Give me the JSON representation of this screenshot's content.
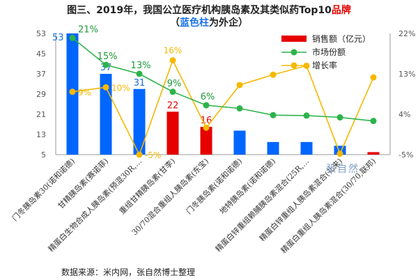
{
  "title": {
    "line1_pre": "图三、2019年，我国公立医疗机构胰岛素及其类似药Top10",
    "line1_red": "品牌",
    "line2_open": "（",
    "line2_blue": "蓝色柱",
    "line2_rest": "为外企）"
  },
  "source": "数据来源：米内网，张自然博士整理",
  "watermark": "张自然",
  "colors": {
    "foreign_bar": "#0066ff",
    "domestic_bar": "#e60000",
    "share_line": "#2db34a",
    "growth_line": "#f5b800"
  },
  "chart_data": {
    "type": "bar",
    "categories": [
      "门冬胰岛素30(诺和诺德)",
      "甘精胰岛素(赛诺菲)",
      "精蛋白生物合成人胰岛素(预混30R,…",
      "重组甘精胰岛素(甘李)",
      "30/70混合重组人胰岛素(东宝)",
      "门冬胰岛素(诺和诺德)",
      "地特胰岛素(诺和诺德)",
      "精蛋白锌重组赖脯胰岛素混合(25R,…",
      "精蛋白锌重组人胰岛素混合(礼来)",
      "精蛋白重组人胰岛素混合(30/70,联邦)"
    ],
    "foreign": [
      true,
      true,
      true,
      false,
      false,
      true,
      true,
      true,
      true,
      false
    ],
    "series": [
      {
        "name": "销售额（亿元）",
        "axis": "left",
        "values": [
          53,
          37,
          31,
          22,
          16,
          14.5,
          10,
          10,
          8.5,
          6
        ]
      },
      {
        "name": "市场份额",
        "axis": "right",
        "values": [
          21,
          15,
          13,
          9,
          6,
          5.3,
          3.8,
          3.7,
          3.3,
          2.5
        ]
      },
      {
        "name": "增长率",
        "axis": "right",
        "values": [
          9,
          10,
          -5,
          16,
          1,
          10.5,
          12.8,
          14.8,
          -4.8,
          12.2
        ]
      }
    ],
    "bar_labels": [
      "53",
      "37",
      "31",
      "22",
      "16",
      "",
      "",
      "",
      "",
      ""
    ],
    "share_labels": [
      "21%",
      "15%",
      "13%",
      "9%",
      "6%",
      "",
      "",
      "",
      "",
      ""
    ],
    "growth_labels": [
      "9%",
      "10%",
      "-5%",
      "16%",
      "",
      "",
      "",
      "",
      "",
      ""
    ],
    "left_axis": {
      "min": 5,
      "max": 53,
      "ticks": [
        "5",
        "13",
        "21",
        "29",
        "37",
        "45",
        "53"
      ]
    },
    "right_axis": {
      "min": -5,
      "max": 22,
      "ticks": [
        "-5%",
        "4%",
        "13%",
        "22%"
      ]
    },
    "legend_position": "top-right",
    "grid": false
  }
}
